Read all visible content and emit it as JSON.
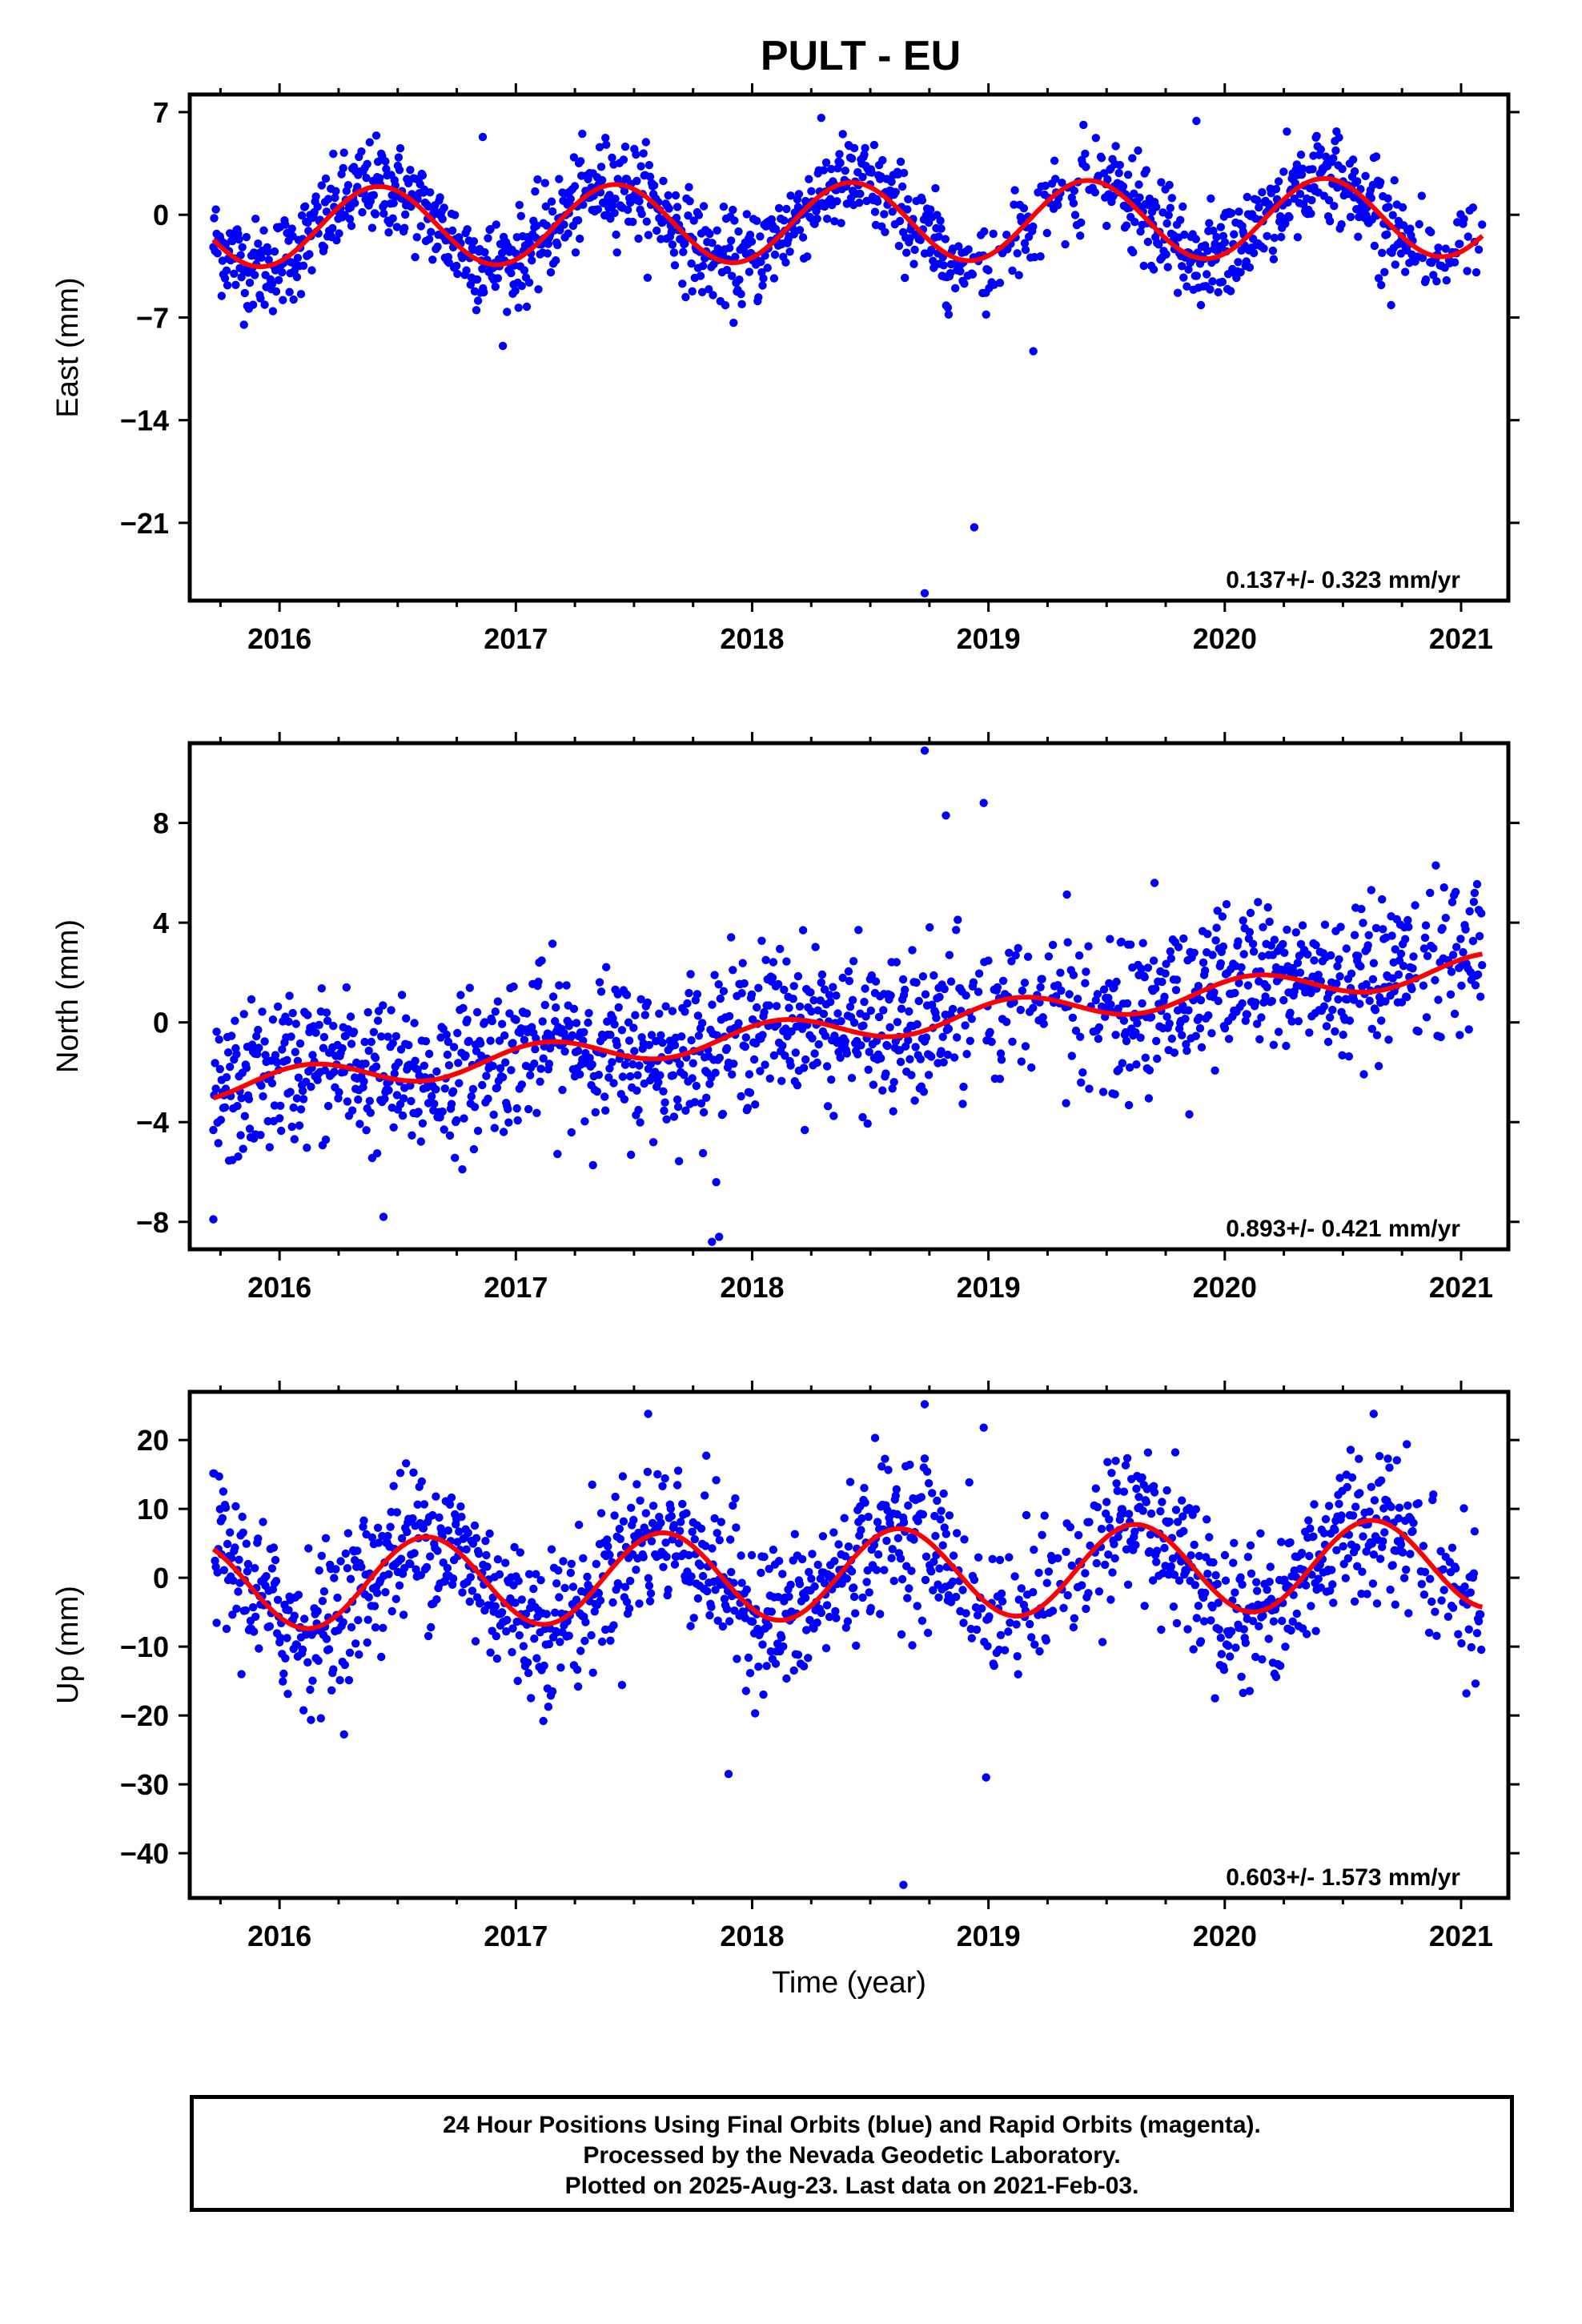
{
  "title": "PULT - EU",
  "caption": [
    "24 Hour Positions Using Final Orbits (blue) and Rapid Orbits (magenta).",
    "Processed by the Nevada Geodetic Laboratory.",
    "Plotted on 2025-Aug-23. Last data on 2021-Feb-03."
  ],
  "colors": {
    "points": "#0000ff",
    "model": "#ff0000",
    "frame": "#000000"
  },
  "chart_data": [
    {
      "type": "scatter",
      "ylabel": "East (mm)",
      "xlabel": "",
      "xlim": [
        2015.62,
        2021.2
      ],
      "ylim": [
        -26.3,
        8.2
      ],
      "xticks": [
        2016,
        2017,
        2018,
        2019,
        2020,
        2021
      ],
      "yticks": [
        7,
        0,
        -7,
        -14,
        -21
      ],
      "ytick_labels": [
        "7",
        "0",
        "−7",
        "−14",
        "−21"
      ],
      "trend_label": "0.137+/- 0.323 mm/yr",
      "trend": {
        "rate": 0.137,
        "amp": 2.7,
        "phase": 0.42,
        "offset": -0.5,
        "ref": 2018.4
      },
      "noise_sd": 1.6,
      "outliers": [
        [
          2018.94,
          -21.3
        ],
        [
          2018.73,
          -25.8
        ],
        [
          2019.19,
          -9.3
        ],
        [
          2018.99,
          -6.8
        ],
        [
          2016.86,
          5.3
        ],
        [
          2019.88,
          6.4
        ]
      ],
      "series": [
        {
          "name": "Final Orbits (blue)",
          "color": "#0000ff"
        }
      ]
    },
    {
      "type": "scatter",
      "ylabel": "North (mm)",
      "xlabel": "",
      "xlim": [
        2015.62,
        2021.2
      ],
      "ylim": [
        -9.1,
        11.2
      ],
      "xticks": [
        2016,
        2017,
        2018,
        2019,
        2020,
        2021
      ],
      "yticks": [
        8,
        4,
        0,
        -4,
        -8
      ],
      "ytick_labels": [
        "8",
        "4",
        "0",
        "−4",
        "−8"
      ],
      "trend_label": "0.893+/- 0.421 mm/yr",
      "trend": {
        "rate": 0.893,
        "amp": 0.55,
        "phase": 0.12,
        "offset": -0.2,
        "ref": 2018.4
      },
      "noise_sd": 1.5,
      "outliers": [
        [
          2018.73,
          10.9
        ],
        [
          2018.98,
          8.8
        ],
        [
          2018.82,
          8.3
        ],
        [
          2017.86,
          -8.6
        ],
        [
          2017.83,
          -8.8
        ],
        [
          2015.72,
          -7.9
        ],
        [
          2016.44,
          -7.8
        ]
      ],
      "series": [
        {
          "name": "Final Orbits (blue)",
          "color": "#0000ff"
        }
      ]
    },
    {
      "type": "scatter",
      "ylabel": "Up (mm)",
      "xlabel": "Time (year)",
      "xlim": [
        2015.62,
        2021.2
      ],
      "ylim": [
        -46.5,
        27
      ],
      "xticks": [
        2016,
        2017,
        2018,
        2019,
        2020,
        2021
      ],
      "yticks": [
        20,
        10,
        0,
        -10,
        -20,
        -30,
        -40
      ],
      "ytick_labels": [
        "20",
        "10",
        "0",
        "−10",
        "−20",
        "−30",
        "−40"
      ],
      "trend_label": "0.603+/- 1.573 mm/yr",
      "trend": {
        "rate": 0.603,
        "amp": 6.5,
        "phase": 0.62,
        "offset": 0.5,
        "ref": 2018.4
      },
      "noise_sd": 5.5,
      "outliers": [
        [
          2018.73,
          25.2
        ],
        [
          2018.64,
          -44.6
        ],
        [
          2017.56,
          23.8
        ],
        [
          2018.98,
          21.8
        ],
        [
          2018.99,
          -29.0
        ],
        [
          2020.63,
          23.8
        ],
        [
          2017.9,
          -28.5
        ]
      ],
      "series": [
        {
          "name": "Final Orbits (blue)",
          "color": "#0000ff"
        }
      ]
    }
  ]
}
